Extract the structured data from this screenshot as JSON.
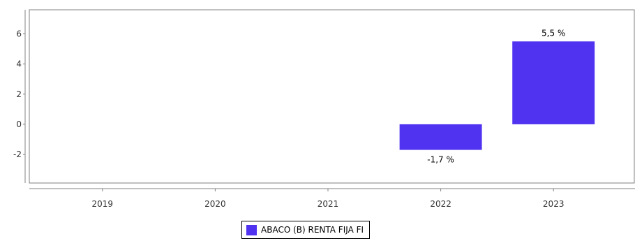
{
  "chart_data": {
    "type": "bar",
    "categories": [
      "2019",
      "2020",
      "2021",
      "2022",
      "2023"
    ],
    "series": [
      {
        "name": "ABACO (B) RENTA FIJA FI",
        "color": "#4f33f0",
        "values": [
          null,
          null,
          null,
          -1.7,
          5.5
        ],
        "labels": [
          null,
          null,
          null,
          "-1,7 %",
          "5,5 %"
        ]
      }
    ],
    "yticks": [
      -2,
      0,
      2,
      4,
      6
    ],
    "ylim": [
      -3.9,
      7.6
    ],
    "grid": false,
    "legend_position": "bottom"
  }
}
